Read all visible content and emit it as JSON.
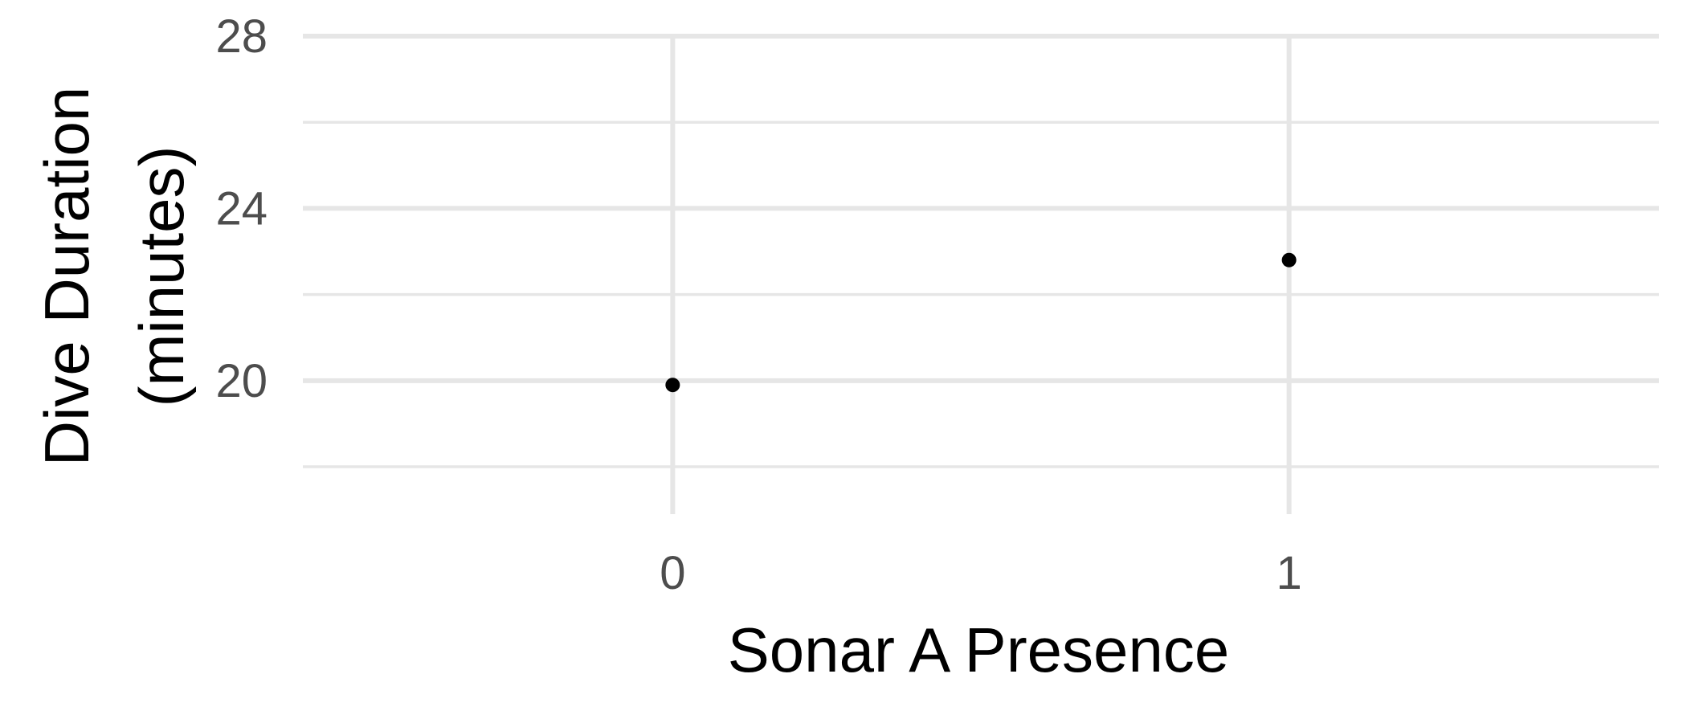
{
  "chart_data": {
    "type": "scatter",
    "xlabel": "Sonar A Presence",
    "ylabel_lines": [
      "Dive Duration",
      "(minutes)"
    ],
    "categories": [
      "0",
      "1"
    ],
    "points": [
      {
        "x": "0",
        "y": 19.9
      },
      {
        "x": "1",
        "y": 22.8
      }
    ],
    "ylim": [
      16.9,
      28.0
    ],
    "y_ticks": [
      20,
      24,
      28
    ],
    "y_minor_ticks": [
      18,
      22,
      26
    ],
    "y_tick_labels": [
      "20",
      "24",
      "28"
    ],
    "grid": true,
    "legend": "none",
    "point_color": "#000000",
    "grid_color": "#e6e6e6",
    "tick_label_color": "#4d4d4d"
  }
}
